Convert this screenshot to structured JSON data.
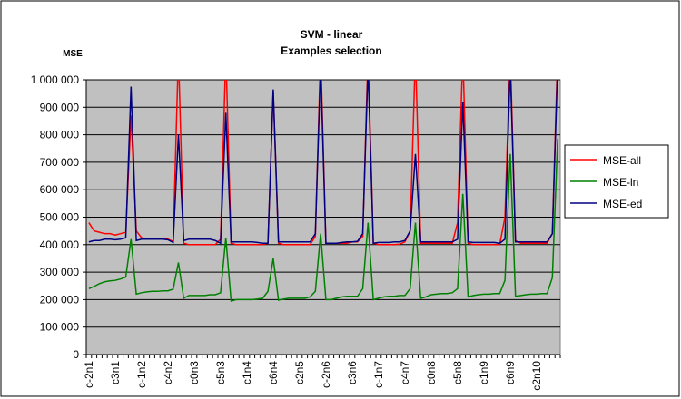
{
  "chart_data": {
    "type": "line",
    "title": "SVM - linear",
    "subtitle": "Examples selection",
    "y_label": "MSE",
    "categories": [
      "c-2n1",
      null,
      null,
      null,
      null,
      "c3n1",
      null,
      null,
      null,
      null,
      "c-1n2",
      null,
      null,
      null,
      null,
      "c4n2",
      null,
      null,
      null,
      null,
      "c0n3",
      null,
      null,
      null,
      null,
      "c5n3",
      null,
      null,
      null,
      null,
      "c1n4",
      null,
      null,
      null,
      null,
      "c6n4",
      null,
      null,
      null,
      null,
      "c2n5",
      null,
      null,
      null,
      null,
      "c-2n6",
      null,
      null,
      null,
      null,
      "c3n6",
      null,
      null,
      null,
      null,
      "c-1n7",
      null,
      null,
      null,
      null,
      "c4n7",
      null,
      null,
      null,
      null,
      "c0n8",
      null,
      null,
      null,
      null,
      "c5n8",
      null,
      null,
      null,
      null,
      "c1n9",
      null,
      null,
      null,
      null,
      "c6n9",
      null,
      null,
      null,
      null,
      "c2n10",
      null,
      null,
      null,
      null
    ],
    "series": [
      {
        "name": "MSE-all",
        "color": "#ff0000",
        "values": [
          480000,
          450000,
          445000,
          440000,
          440000,
          435000,
          440000,
          445000,
          870000,
          450000,
          425000,
          422000,
          420000,
          420000,
          420000,
          420000,
          412000,
          1100000,
          405000,
          400000,
          400000,
          400000,
          400000,
          400000,
          400000,
          420000,
          1100000,
          405000,
          400000,
          400000,
          400000,
          400000,
          400000,
          400000,
          405000,
          960000,
          405000,
          400000,
          400000,
          400000,
          400000,
          400000,
          400000,
          430000,
          1100000,
          405000,
          405000,
          405000,
          405000,
          405000,
          410000,
          410000,
          430000,
          1100000,
          405000,
          400000,
          400000,
          400000,
          400000,
          402000,
          410000,
          450000,
          1100000,
          405000,
          405000,
          405000,
          405000,
          405000,
          405000,
          405000,
          480000,
          1100000,
          405000,
          400000,
          400000,
          400000,
          400000,
          400000,
          400000,
          500000,
          1100000,
          415000,
          405000,
          405000,
          405000,
          405000,
          405000,
          405000,
          440000,
          1100000
        ]
      },
      {
        "name": "MSE-ln",
        "color": "#008000",
        "values": [
          240000,
          248000,
          258000,
          265000,
          268000,
          270000,
          275000,
          282000,
          420000,
          220000,
          225000,
          228000,
          230000,
          230000,
          232000,
          232000,
          238000,
          335000,
          205000,
          215000,
          215000,
          215000,
          215000,
          218000,
          218000,
          225000,
          425000,
          195000,
          200000,
          200000,
          200000,
          200000,
          202000,
          205000,
          230000,
          350000,
          198000,
          202000,
          205000,
          205000,
          205000,
          205000,
          210000,
          230000,
          440000,
          200000,
          200000,
          205000,
          210000,
          212000,
          212000,
          212000,
          240000,
          480000,
          200000,
          205000,
          210000,
          212000,
          212000,
          215000,
          215000,
          240000,
          480000,
          205000,
          210000,
          218000,
          220000,
          222000,
          222000,
          225000,
          240000,
          585000,
          210000,
          215000,
          218000,
          220000,
          220000,
          222000,
          222000,
          270000,
          730000,
          212000,
          215000,
          218000,
          220000,
          220000,
          222000,
          222000,
          280000,
          785000
        ]
      },
      {
        "name": "MSE-ed",
        "color": "#000080",
        "values": [
          410000,
          415000,
          415000,
          420000,
          420000,
          418000,
          420000,
          425000,
          975000,
          415000,
          420000,
          420000,
          420000,
          420000,
          420000,
          418000,
          408000,
          800000,
          415000,
          420000,
          420000,
          420000,
          420000,
          420000,
          415000,
          405000,
          880000,
          410000,
          410000,
          410000,
          410000,
          410000,
          408000,
          405000,
          405000,
          965000,
          410000,
          410000,
          410000,
          410000,
          410000,
          410000,
          410000,
          440000,
          1050000,
          405000,
          405000,
          405000,
          408000,
          410000,
          410000,
          412000,
          440000,
          1050000,
          405000,
          408000,
          408000,
          408000,
          410000,
          410000,
          415000,
          450000,
          730000,
          410000,
          410000,
          410000,
          410000,
          410000,
          410000,
          410000,
          420000,
          920000,
          410000,
          408000,
          408000,
          408000,
          408000,
          408000,
          405000,
          420000,
          1050000,
          410000,
          410000,
          410000,
          410000,
          410000,
          410000,
          410000,
          440000,
          1050000
        ]
      }
    ],
    "ylim": [
      0,
      1000000
    ],
    "yticks": [
      0,
      {
        "value": 100000,
        "label": "100 000"
      },
      {
        "value": 200000,
        "label": "200 000"
      },
      {
        "value": 300000,
        "label": "300 000"
      },
      {
        "value": 400000,
        "label": "400 000"
      },
      {
        "value": 500000,
        "label": "500 000"
      },
      {
        "value": 600000,
        "label": "600 000"
      },
      {
        "value": 700000,
        "label": "700 000"
      },
      {
        "value": 800000,
        "label": "800 000"
      },
      {
        "value": 900000,
        "label": "900 000"
      },
      {
        "value": 1000000,
        "label": "1 000 000"
      }
    ],
    "grid": true,
    "legend": "right",
    "background": "#c0c0c0"
  }
}
